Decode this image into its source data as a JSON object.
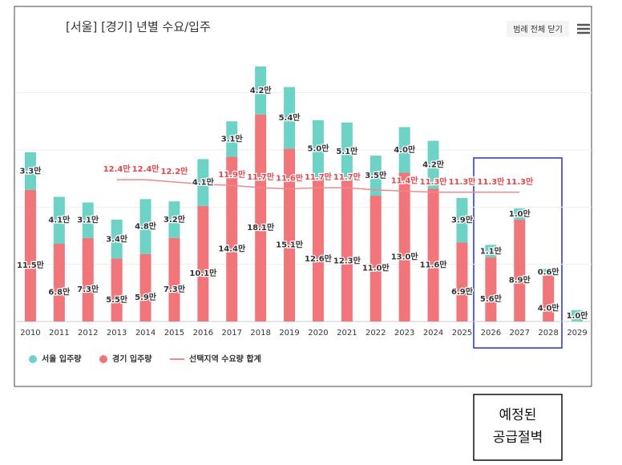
{
  "chart_data": {
    "type": "stacked-bar-line",
    "title": "[서울] [경기] 년별 수요/입주",
    "legend_toggle": "범례 전체 닫기",
    "categories": [
      "2010",
      "2011",
      "2012",
      "2013",
      "2014",
      "2015",
      "2016",
      "2017",
      "2018",
      "2019",
      "2020",
      "2021",
      "2022",
      "2023",
      "2024",
      "2025",
      "2026",
      "2027",
      "2028",
      "2029"
    ],
    "series": [
      {
        "name": "경기 입주량",
        "color": "#f2757a",
        "values": [
          11.5,
          6.8,
          7.3,
          5.5,
          5.9,
          7.3,
          10.1,
          14.4,
          18.1,
          15.1,
          12.6,
          12.3,
          11.0,
          13.0,
          11.6,
          6.9,
          5.6,
          8.9,
          4.0,
          null
        ],
        "value_labels": [
          "11.5만",
          "6.8만",
          "7.3만",
          "5.5만",
          "5.9만",
          "7.3만",
          "10.1만",
          "14.4만",
          "18.1만",
          "15.1만",
          "12.6만",
          "12.3만",
          "11.0만",
          "13.0만",
          "11.6만",
          "6.9만",
          "5.6만",
          "8.9만",
          "4.0만",
          null
        ]
      },
      {
        "name": "서울 입주량",
        "color": "#6dd3c7",
        "values": [
          3.3,
          4.1,
          3.1,
          3.4,
          4.8,
          3.2,
          4.1,
          3.1,
          4.2,
          5.4,
          5.0,
          5.1,
          3.5,
          4.0,
          4.2,
          3.9,
          1.1,
          1.0,
          0.6,
          1.0
        ],
        "value_labels": [
          "3.3만",
          "4.1만",
          "3.1만",
          "3.4만",
          "4.8만",
          "3.2만",
          "4.1만",
          "3.1만",
          "4.2만",
          "5.4만",
          "5.0만",
          "5.1만",
          "3.5만",
          "4.0만",
          "4.2만",
          "3.9만",
          "1.1만",
          "1.0만",
          "0.6만",
          "1.0만"
        ]
      },
      {
        "name": "선택지역 수요량 합계",
        "color": "#f08a8a",
        "kind": "line",
        "values": [
          null,
          null,
          null,
          12.4,
          12.4,
          12.2,
          12.0,
          11.9,
          11.7,
          11.6,
          11.7,
          11.7,
          11.5,
          11.4,
          11.3,
          11.3,
          11.3,
          11.3,
          null,
          null
        ],
        "value_labels": [
          null,
          null,
          null,
          "12.4만",
          "12.4만",
          "12.2만",
          null,
          "11.9만",
          "11.7만",
          "11.6만",
          "11.7만",
          "11.7만",
          null,
          "11.4만",
          "11.3만",
          "11.3만",
          "11.3만",
          "11.3만",
          null,
          null
        ]
      }
    ],
    "ylim": [
      0,
      22.5
    ],
    "yticks": [
      0,
      5,
      10,
      15,
      20
    ],
    "grid": true,
    "annotation": [
      "예정된",
      "공급절벽"
    ]
  }
}
